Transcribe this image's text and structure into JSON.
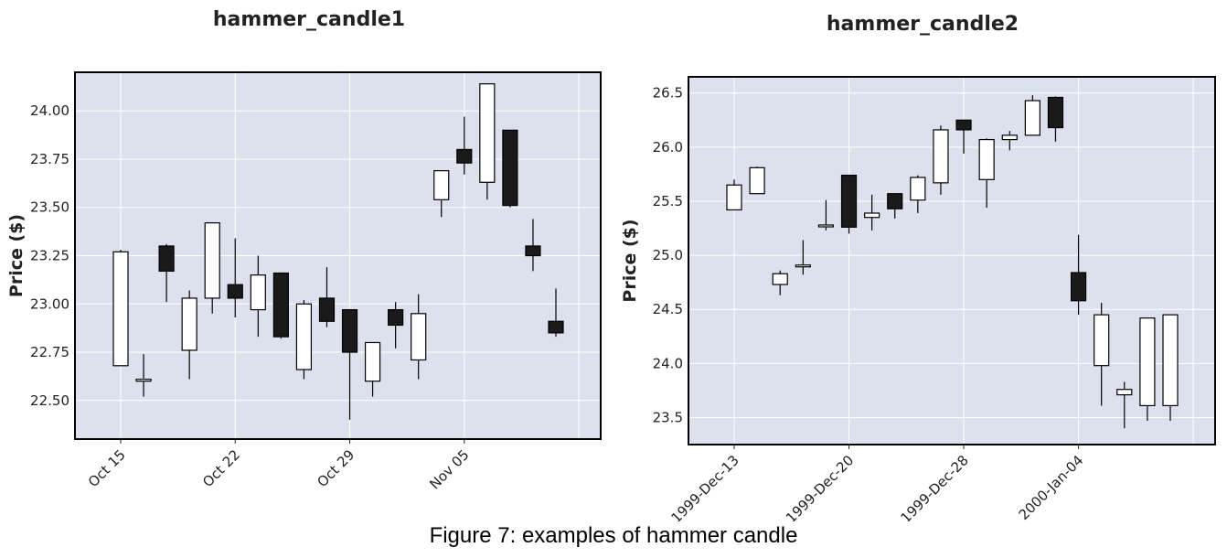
{
  "caption": "Figure 7: examples of hammer candle",
  "chart_data": [
    {
      "type": "candlestick",
      "title": "hammer_candle1",
      "ylabel": "Price ($)",
      "xlabel": "",
      "ylim": [
        22.3,
        24.2
      ],
      "yticks": [
        "22.50",
        "22.75",
        "23.00",
        "23.25",
        "23.50",
        "23.75",
        "24.00"
      ],
      "xtick_labels": [
        "Oct 15",
        "Oct 22",
        "Oct 29",
        "Nov 05"
      ],
      "xtick_index": [
        0,
        5,
        10,
        15
      ],
      "grid": true,
      "up_color": "#ffffff",
      "down_color": "#1a1a1a",
      "background": "#dde1ee",
      "candles": [
        {
          "open": 22.68,
          "high": 23.28,
          "low": 22.68,
          "close": 23.27
        },
        {
          "open": 22.6,
          "high": 22.74,
          "low": 22.52,
          "close": 22.61
        },
        {
          "open": 23.3,
          "high": 23.31,
          "low": 23.01,
          "close": 23.17
        },
        {
          "open": 22.76,
          "high": 23.07,
          "low": 22.61,
          "close": 23.03
        },
        {
          "open": 23.03,
          "high": 23.42,
          "low": 22.95,
          "close": 23.42
        },
        {
          "open": 23.1,
          "high": 23.34,
          "low": 22.93,
          "close": 23.03
        },
        {
          "open": 22.97,
          "high": 23.25,
          "low": 22.83,
          "close": 23.15
        },
        {
          "open": 23.16,
          "high": 23.16,
          "low": 22.82,
          "close": 22.83
        },
        {
          "open": 22.66,
          "high": 23.02,
          "low": 22.61,
          "close": 23.0
        },
        {
          "open": 23.03,
          "high": 23.19,
          "low": 22.88,
          "close": 22.91
        },
        {
          "open": 22.97,
          "high": 22.97,
          "low": 22.4,
          "close": 22.75
        },
        {
          "open": 22.6,
          "high": 22.8,
          "low": 22.52,
          "close": 22.8
        },
        {
          "open": 22.97,
          "high": 23.01,
          "low": 22.77,
          "close": 22.89
        },
        {
          "open": 22.71,
          "high": 23.05,
          "low": 22.61,
          "close": 22.95
        },
        {
          "open": 23.54,
          "high": 23.69,
          "low": 23.45,
          "close": 23.69
        },
        {
          "open": 23.8,
          "high": 23.97,
          "low": 23.67,
          "close": 23.73
        },
        {
          "open": 23.63,
          "high": 24.14,
          "low": 23.54,
          "close": 24.14
        },
        {
          "open": 23.9,
          "high": 23.9,
          "low": 23.5,
          "close": 23.51
        },
        {
          "open": 23.3,
          "high": 23.44,
          "low": 23.17,
          "close": 23.25
        },
        {
          "open": 22.91,
          "high": 23.08,
          "low": 22.83,
          "close": 22.85
        }
      ]
    },
    {
      "type": "candlestick",
      "title": "hammer_candle2",
      "ylabel": "Price ($)",
      "xlabel": "",
      "ylim": [
        23.25,
        26.65
      ],
      "yticks": [
        "23.5",
        "24.0",
        "24.5",
        "25.0",
        "25.5",
        "26.0",
        "26.5"
      ],
      "xtick_labels": [
        "1999-Dec-13",
        "1999-Dec-20",
        "1999-Dec-28",
        "2000-Jan-04"
      ],
      "xtick_index": [
        0,
        5,
        10,
        15
      ],
      "grid": true,
      "up_color": "#ffffff",
      "down_color": "#1a1a1a",
      "background": "#dde1ee",
      "candles": [
        {
          "open": 25.42,
          "high": 25.7,
          "low": 25.42,
          "close": 25.65
        },
        {
          "open": 25.57,
          "high": 25.82,
          "low": 25.57,
          "close": 25.81
        },
        {
          "open": 24.73,
          "high": 24.86,
          "low": 24.63,
          "close": 24.83
        },
        {
          "open": 24.91,
          "high": 25.14,
          "low": 24.82,
          "close": 24.91
        },
        {
          "open": 25.28,
          "high": 25.51,
          "low": 25.23,
          "close": 25.28
        },
        {
          "open": 25.74,
          "high": 25.74,
          "low": 25.2,
          "close": 25.26
        },
        {
          "open": 25.35,
          "high": 25.56,
          "low": 25.23,
          "close": 25.39
        },
        {
          "open": 25.57,
          "high": 25.57,
          "low": 25.34,
          "close": 25.43
        },
        {
          "open": 25.51,
          "high": 25.74,
          "low": 25.39,
          "close": 25.72
        },
        {
          "open": 25.67,
          "high": 26.2,
          "low": 25.56,
          "close": 26.16
        },
        {
          "open": 26.25,
          "high": 26.25,
          "low": 25.94,
          "close": 26.16
        },
        {
          "open": 25.7,
          "high": 26.08,
          "low": 25.44,
          "close": 26.07
        },
        {
          "open": 26.07,
          "high": 26.15,
          "low": 25.97,
          "close": 26.11
        },
        {
          "open": 26.11,
          "high": 26.48,
          "low": 26.11,
          "close": 26.43
        },
        {
          "open": 26.46,
          "high": 26.47,
          "low": 26.05,
          "close": 26.18
        },
        {
          "open": 24.84,
          "high": 25.19,
          "low": 24.45,
          "close": 24.58
        },
        {
          "open": 23.98,
          "high": 24.56,
          "low": 23.61,
          "close": 24.45
        },
        {
          "open": 23.71,
          "high": 23.83,
          "low": 23.4,
          "close": 23.76
        },
        {
          "open": 23.61,
          "high": 24.42,
          "low": 23.47,
          "close": 24.42
        },
        {
          "open": 23.61,
          "high": 24.45,
          "low": 23.47,
          "close": 24.45
        }
      ]
    }
  ]
}
